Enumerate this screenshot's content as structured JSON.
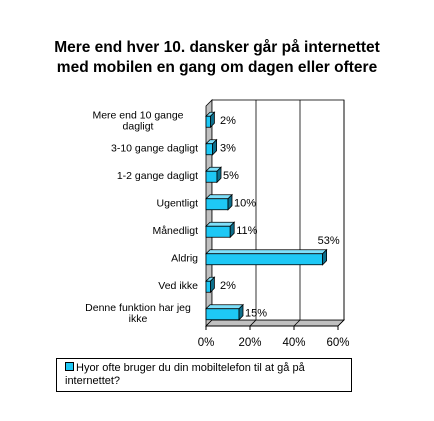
{
  "chart_data": {
    "type": "bar",
    "orientation": "horizontal",
    "title_lines": [
      "Mere end hver 10. dansker går på internettet",
      "med mobilen en gang om dagen eller oftere"
    ],
    "categories": [
      [
        "Mere end 10 gange",
        "dagligt"
      ],
      [
        "3-10 gange dagligt"
      ],
      [
        "1-2 gange dagligt"
      ],
      [
        "Ugentligt"
      ],
      [
        "Månedligt"
      ],
      [
        "Aldrig"
      ],
      [
        "Ved ikke"
      ],
      [
        "Denne funktion har jeg",
        "ikke"
      ]
    ],
    "series": [
      {
        "name": "Hyor ofte bruger du din mobiltelefon til at gå på internettet?",
        "values": [
          2,
          3,
          5,
          10,
          11,
          53,
          2,
          15
        ],
        "labels": [
          "2%",
          "3%",
          "5%",
          "10%",
          "11%",
          "53%",
          "2%",
          "15%"
        ]
      }
    ],
    "xlim": [
      0,
      60
    ],
    "xticks": [
      0,
      20,
      40,
      60
    ],
    "xtick_labels": [
      "0%",
      "20%",
      "40%",
      "60%"
    ],
    "grid": true,
    "three_d": true,
    "legend_position": "bottom",
    "colors": {
      "bar": "#1ec8f5",
      "bar_side": "#0c6f8c",
      "bar_top": "#7fe0fa",
      "wall": "#c0c0c0"
    }
  }
}
